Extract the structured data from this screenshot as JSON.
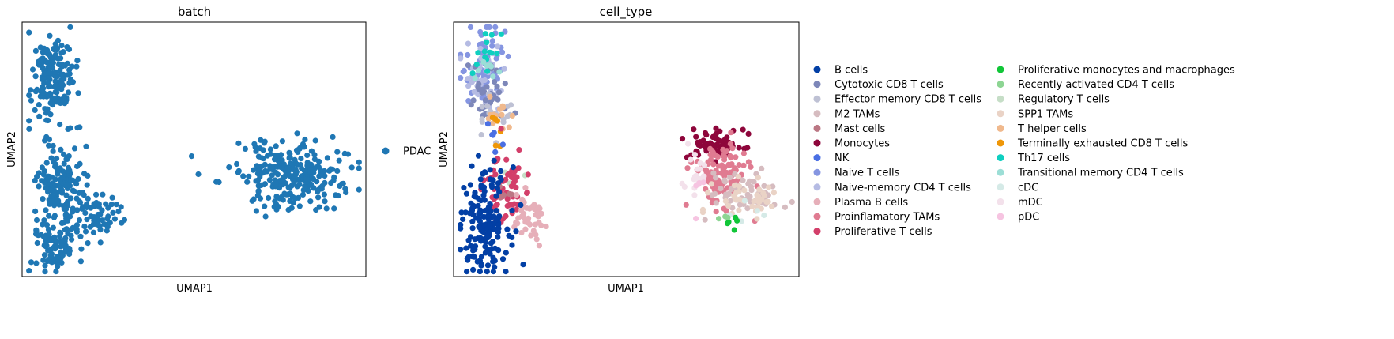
{
  "chart_data": [
    {
      "type": "scatter",
      "title": "batch",
      "xlabel": "UMAP1",
      "ylabel": "UMAP2",
      "grid": false,
      "legend": {
        "placement": "right",
        "columns": 1,
        "entries": [
          {
            "label": "PDAC",
            "color": "#1f77b4"
          }
        ]
      },
      "clusters": [
        {
          "label": "PDAC",
          "color": "#1f77b4",
          "n": 170,
          "cx": 0.09,
          "cy": 0.77,
          "sx": 0.03,
          "sy": 0.09
        },
        {
          "label": "PDAC",
          "color": "#1f77b4",
          "n": 150,
          "cx": 0.11,
          "cy": 0.35,
          "sx": 0.035,
          "sy": 0.08
        },
        {
          "label": "PDAC",
          "color": "#1f77b4",
          "n": 60,
          "cx": 0.22,
          "cy": 0.24,
          "sx": 0.035,
          "sy": 0.045
        },
        {
          "label": "PDAC",
          "color": "#1f77b4",
          "n": 90,
          "cx": 0.1,
          "cy": 0.12,
          "sx": 0.035,
          "sy": 0.05
        },
        {
          "label": "PDAC",
          "color": "#1f77b4",
          "n": 260,
          "cx": 0.79,
          "cy": 0.4,
          "sx": 0.085,
          "sy": 0.07
        }
      ]
    },
    {
      "type": "scatter",
      "title": "cell_type",
      "xlabel": "UMAP1",
      "ylabel": "UMAP2",
      "grid": false,
      "legend": {
        "placement": "right",
        "columns": 2,
        "entries": [
          {
            "label": "B cells",
            "color": "#023fa5"
          },
          {
            "label": "Cytotoxic CD8 T cells",
            "color": "#7d87b9"
          },
          {
            "label": "Effector memory CD8 T cells",
            "color": "#bec1d4"
          },
          {
            "label": "M2 TAMs",
            "color": "#d6bcc0"
          },
          {
            "label": "Mast cells",
            "color": "#bb7784"
          },
          {
            "label": "Monocytes",
            "color": "#8e063b"
          },
          {
            "label": "NK",
            "color": "#4a6fe3"
          },
          {
            "label": "Naive T cells",
            "color": "#8595e1"
          },
          {
            "label": "Naive-memory CD4 T cells",
            "color": "#b5bbe3"
          },
          {
            "label": "Plasma B cells",
            "color": "#e6afb9"
          },
          {
            "label": "Proinflamatory TAMs",
            "color": "#e07b91"
          },
          {
            "label": "Proliferative T cells",
            "color": "#d33f6a"
          },
          {
            "label": "Proliferative monocytes and macrophages",
            "color": "#11c638"
          },
          {
            "label": "Recently activated CD4 T cells",
            "color": "#8dd593"
          },
          {
            "label": "Regulatory T cells",
            "color": "#c6dec7"
          },
          {
            "label": "SPP1 TAMs",
            "color": "#ead3c6"
          },
          {
            "label": "T helper cells",
            "color": "#f0b98d"
          },
          {
            "label": "Terminally exhausted CD8 T cells",
            "color": "#ef9708"
          },
          {
            "label": "Th17 cells",
            "color": "#0fcfc0"
          },
          {
            "label": "Transitional memory CD4 T cells",
            "color": "#9cded6"
          },
          {
            "label": "cDC",
            "color": "#d5eae7"
          },
          {
            "label": "mDC",
            "color": "#f3e1eb"
          },
          {
            "label": "pDC",
            "color": "#f6c4e1"
          }
        ]
      },
      "clusters": [
        {
          "label": "Naive T cells",
          "color": "#8595e1",
          "n": 70,
          "cx": 0.09,
          "cy": 0.82,
          "sx": 0.03,
          "sy": 0.07
        },
        {
          "label": "Naive-memory CD4 T cells",
          "color": "#b5bbe3",
          "n": 40,
          "cx": 0.08,
          "cy": 0.8,
          "sx": 0.03,
          "sy": 0.08
        },
        {
          "label": "Cytotoxic CD8 T cells",
          "color": "#7d87b9",
          "n": 35,
          "cx": 0.1,
          "cy": 0.7,
          "sx": 0.03,
          "sy": 0.06
        },
        {
          "label": "Effector memory CD8 T cells",
          "color": "#bec1d4",
          "n": 20,
          "cx": 0.11,
          "cy": 0.63,
          "sx": 0.025,
          "sy": 0.04
        },
        {
          "label": "Th17 cells",
          "color": "#0fcfc0",
          "n": 14,
          "cx": 0.09,
          "cy": 0.88,
          "sx": 0.025,
          "sy": 0.05
        },
        {
          "label": "Transitional memory CD4 T cells",
          "color": "#9cded6",
          "n": 8,
          "cx": 0.1,
          "cy": 0.8,
          "sx": 0.025,
          "sy": 0.05
        },
        {
          "label": "T helper cells",
          "color": "#f0b98d",
          "n": 14,
          "cx": 0.13,
          "cy": 0.63,
          "sx": 0.02,
          "sy": 0.035
        },
        {
          "label": "Terminally exhausted CD8 T cells",
          "color": "#ef9708",
          "n": 6,
          "cx": 0.13,
          "cy": 0.55,
          "sx": 0.015,
          "sy": 0.04
        },
        {
          "label": "NK",
          "color": "#4a6fe3",
          "n": 6,
          "cx": 0.12,
          "cy": 0.57,
          "sx": 0.02,
          "sy": 0.04
        },
        {
          "label": "Regulatory T cells",
          "color": "#c6dec7",
          "n": 5,
          "cx": 0.16,
          "cy": 0.42,
          "sx": 0.02,
          "sy": 0.03
        },
        {
          "label": "Proliferative T cells",
          "color": "#d33f6a",
          "n": 60,
          "cx": 0.15,
          "cy": 0.35,
          "sx": 0.03,
          "sy": 0.07
        },
        {
          "label": "Mast cells",
          "color": "#bb7784",
          "n": 6,
          "cx": 0.14,
          "cy": 0.3,
          "sx": 0.02,
          "sy": 0.03
        },
        {
          "label": "Plasma B cells",
          "color": "#e6afb9",
          "n": 45,
          "cx": 0.22,
          "cy": 0.22,
          "sx": 0.03,
          "sy": 0.05
        },
        {
          "label": "B cells",
          "color": "#023fa5",
          "n": 160,
          "cx": 0.09,
          "cy": 0.22,
          "sx": 0.035,
          "sy": 0.1
        },
        {
          "label": "Monocytes",
          "color": "#8e063b",
          "n": 60,
          "cx": 0.76,
          "cy": 0.52,
          "sx": 0.04,
          "sy": 0.03
        },
        {
          "label": "Proinflamatory TAMs",
          "color": "#e07b91",
          "n": 120,
          "cx": 0.77,
          "cy": 0.4,
          "sx": 0.04,
          "sy": 0.06
        },
        {
          "label": "M2 TAMs",
          "color": "#d6bcc0",
          "n": 60,
          "cx": 0.84,
          "cy": 0.33,
          "sx": 0.05,
          "sy": 0.04
        },
        {
          "label": "SPP1 TAMs",
          "color": "#ead3c6",
          "n": 40,
          "cx": 0.86,
          "cy": 0.3,
          "sx": 0.05,
          "sy": 0.04
        },
        {
          "label": "mDC",
          "color": "#f3e1eb",
          "n": 20,
          "cx": 0.7,
          "cy": 0.4,
          "sx": 0.02,
          "sy": 0.06
        },
        {
          "label": "pDC",
          "color": "#f6c4e1",
          "n": 5,
          "cx": 0.71,
          "cy": 0.34,
          "sx": 0.02,
          "sy": 0.04
        },
        {
          "label": "cDC",
          "color": "#d5eae7",
          "n": 6,
          "cx": 0.84,
          "cy": 0.22,
          "sx": 0.03,
          "sy": 0.03
        },
        {
          "label": "Proliferative monocytes and macrophages",
          "color": "#11c638",
          "n": 6,
          "cx": 0.81,
          "cy": 0.22,
          "sx": 0.01,
          "sy": 0.015
        },
        {
          "label": "Recently activated CD4 T cells",
          "color": "#8dd593",
          "n": 3,
          "cx": 0.78,
          "cy": 0.24,
          "sx": 0.01,
          "sy": 0.015
        }
      ]
    }
  ]
}
